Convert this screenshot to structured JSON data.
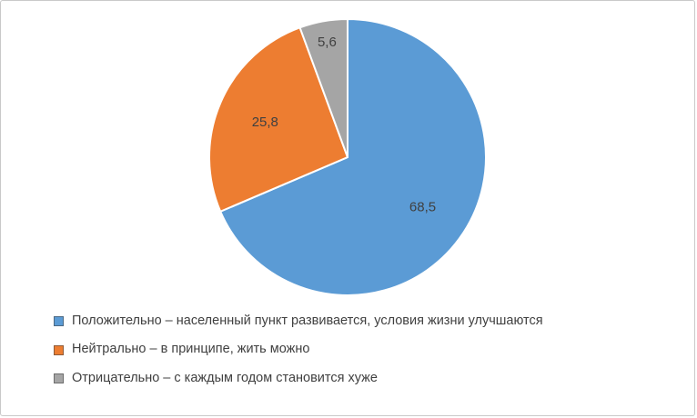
{
  "chart_data": {
    "type": "pie",
    "title": "",
    "start_angle_deg": 0,
    "direction": "clockwise",
    "legend_position": "bottom-left",
    "categories": [
      "Положительно – населенный пункт развивается, условия жизни улучшаются",
      "Нейтрально – в принципе, жить можно",
      "Отрицательно – с каждым годом становится хуже"
    ],
    "values": [
      68.5,
      25.8,
      5.6
    ],
    "value_labels": [
      "68,5",
      "25,8",
      "5,6"
    ],
    "colors": [
      "#5b9bd5",
      "#ed7d31",
      "#a5a5a5"
    ],
    "label_color": "#404040"
  }
}
